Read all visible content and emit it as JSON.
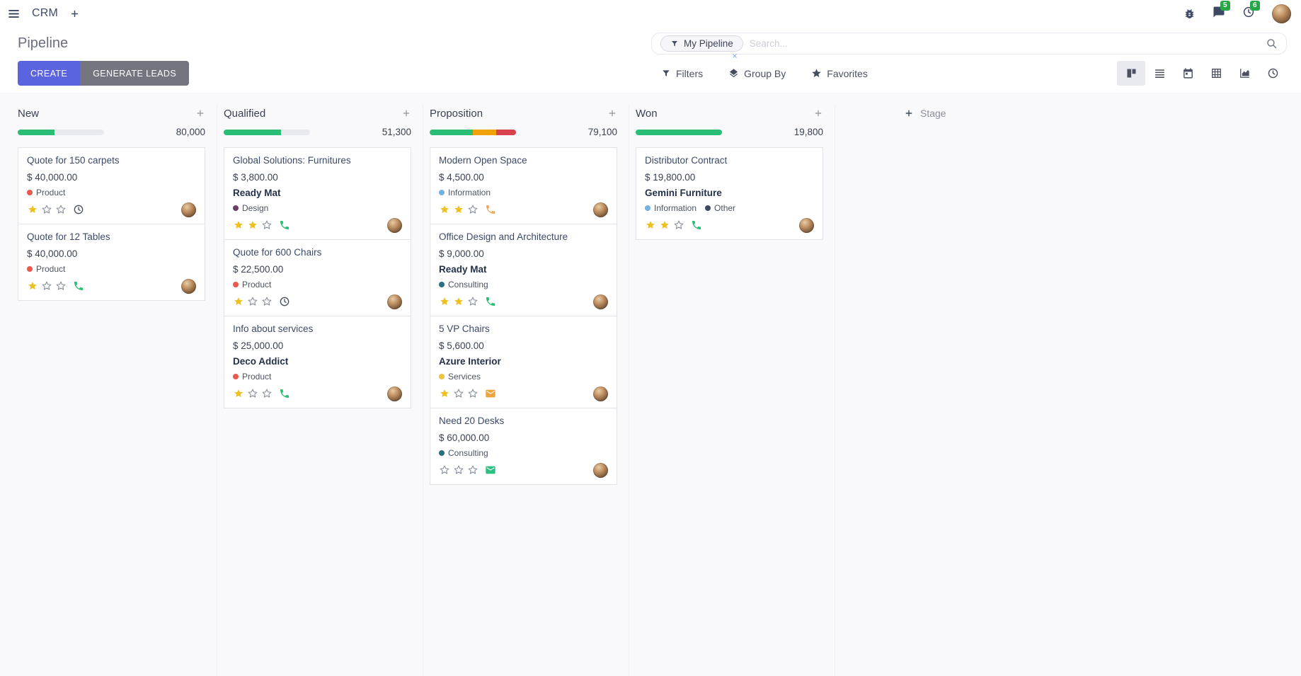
{
  "navbar": {
    "app_name": "CRM",
    "systray": {
      "messages_badge": "5",
      "activities_badge": "6"
    }
  },
  "control_panel": {
    "title": "Pipeline",
    "buttons": {
      "create": "CREATE",
      "generate_leads": "GENERATE LEADS"
    },
    "search": {
      "facet_label": "My Pipeline",
      "placeholder": "Search..."
    },
    "menus": {
      "filters": "Filters",
      "group_by": "Group By",
      "favorites": "Favorites"
    },
    "views": {
      "active": "kanban",
      "options": [
        "kanban",
        "list",
        "calendar",
        "pivot",
        "graph",
        "activity"
      ]
    }
  },
  "board": {
    "add_stage_label": "Stage",
    "columns": [
      {
        "name": "New",
        "total": "80,000",
        "progress": [
          {
            "color": "#2abd75",
            "pct": 43
          }
        ],
        "cards": [
          {
            "title": "Quote for 150 carpets",
            "amount": "$ 40,000.00",
            "partner": "",
            "tags": [
              {
                "label": "Product",
                "color": "#e8594e"
              }
            ],
            "stars": 1,
            "activity": {
              "type": "clock",
              "color": "#4a5160"
            }
          },
          {
            "title": "Quote for 12 Tables",
            "amount": "$ 40,000.00",
            "partner": "",
            "tags": [
              {
                "label": "Product",
                "color": "#e8594e"
              }
            ],
            "stars": 1,
            "activity": {
              "type": "phone",
              "color": "#2abd75"
            }
          }
        ]
      },
      {
        "name": "Qualified",
        "total": "51,300",
        "progress": [
          {
            "color": "#2abd75",
            "pct": 66
          }
        ],
        "cards": [
          {
            "title": "Global Solutions: Furnitures",
            "amount": "$ 3,800.00",
            "partner": "Ready Mat",
            "tags": [
              {
                "label": "Design",
                "color": "#6b3e63"
              }
            ],
            "stars": 2,
            "activity": {
              "type": "phone",
              "color": "#2abd75"
            }
          },
          {
            "title": "Quote for 600 Chairs",
            "amount": "$ 22,500.00",
            "partner": "",
            "tags": [
              {
                "label": "Product",
                "color": "#e8594e"
              }
            ],
            "stars": 1,
            "activity": {
              "type": "clock",
              "color": "#4a5160"
            }
          },
          {
            "title": "Info about services",
            "amount": "$ 25,000.00",
            "partner": "Deco Addict",
            "tags": [
              {
                "label": "Product",
                "color": "#e8594e"
              }
            ],
            "stars": 1,
            "activity": {
              "type": "phone",
              "color": "#2abd75"
            }
          }
        ]
      },
      {
        "name": "Proposition",
        "total": "79,100",
        "progress": [
          {
            "color": "#2abd75",
            "pct": 50
          },
          {
            "color": "#efa302",
            "pct": 27
          },
          {
            "color": "#d8414e",
            "pct": 23
          }
        ],
        "cards": [
          {
            "title": "Modern Open Space",
            "amount": "$ 4,500.00",
            "partner": "",
            "tags": [
              {
                "label": "Information",
                "color": "#72b2e2"
              }
            ],
            "stars": 2,
            "activity": {
              "type": "phone",
              "color": "#eda95e"
            }
          },
          {
            "title": "Office Design and Architecture",
            "amount": "$ 9,000.00",
            "partner": "Ready Mat",
            "tags": [
              {
                "label": "Consulting",
                "color": "#2a6f7f"
              }
            ],
            "stars": 2,
            "activity": {
              "type": "phone",
              "color": "#2abd75"
            }
          },
          {
            "title": "5 VP Chairs",
            "amount": "$ 5,600.00",
            "partner": "Azure Interior",
            "tags": [
              {
                "label": "Services",
                "color": "#edc343"
              }
            ],
            "stars": 1,
            "activity": {
              "type": "email",
              "color": "#eda53f"
            }
          },
          {
            "title": "Need 20 Desks",
            "amount": "$ 60,000.00",
            "partner": "",
            "tags": [
              {
                "label": "Consulting",
                "color": "#2a6f7f"
              }
            ],
            "stars": 0,
            "activity": {
              "type": "email",
              "color": "#2fbf82"
            }
          }
        ]
      },
      {
        "name": "Won",
        "total": "19,800",
        "progress": [
          {
            "color": "#2abd75",
            "pct": 100
          }
        ],
        "cards": [
          {
            "title": "Distributor Contract",
            "amount": "$ 19,800.00",
            "partner": "Gemini Furniture",
            "tags": [
              {
                "label": "Information",
                "color": "#72b2e2"
              },
              {
                "label": "Other",
                "color": "#3d4b60"
              }
            ],
            "stars": 2,
            "activity": {
              "type": "phone",
              "color": "#2abd75"
            }
          }
        ]
      }
    ]
  },
  "colors": {
    "primary": "#5a64de",
    "secondary": "#75757f",
    "badge_green": "#28a745",
    "star_filled": "#f0c020",
    "progress_green": "#2abd75",
    "progress_orange": "#efa302",
    "progress_red": "#d8414e"
  }
}
